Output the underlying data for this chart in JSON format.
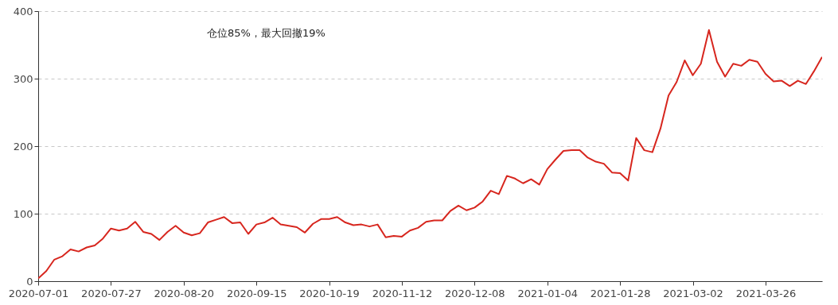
{
  "chart_data": {
    "type": "line",
    "categories": [
      "2020-07-01",
      null,
      null,
      null,
      null,
      null,
      null,
      null,
      null,
      "2020-07-27",
      null,
      null,
      null,
      null,
      null,
      null,
      null,
      null,
      "2020-08-20",
      null,
      null,
      null,
      null,
      null,
      null,
      null,
      null,
      "2020-09-15",
      null,
      null,
      null,
      null,
      null,
      null,
      null,
      null,
      "2020-10-19",
      null,
      null,
      null,
      null,
      null,
      null,
      null,
      null,
      "2020-11-12",
      null,
      null,
      null,
      null,
      null,
      null,
      null,
      null,
      "2020-12-08",
      null,
      null,
      null,
      null,
      null,
      null,
      null,
      null,
      "2021-01-04",
      null,
      null,
      null,
      null,
      null,
      null,
      null,
      null,
      "2021-01-28",
      null,
      null,
      null,
      null,
      null,
      null,
      null,
      null,
      "2021-03-02",
      null,
      null,
      null,
      null,
      null,
      null,
      null,
      null,
      "2021-03-26",
      null,
      null,
      null,
      null,
      null,
      null,
      null
    ],
    "series": [
      {
        "color": "#d7261e",
        "values": [
          4,
          15,
          32,
          37,
          47,
          44,
          50,
          53,
          63,
          78,
          75,
          78,
          88,
          73,
          70,
          61,
          73,
          82,
          72,
          68,
          71,
          87,
          91,
          95,
          86,
          87,
          70,
          84,
          87,
          94,
          84,
          82,
          80,
          72,
          85,
          92,
          92,
          95,
          87,
          83,
          84,
          81,
          84,
          65,
          67,
          66,
          75,
          79,
          88,
          90,
          90,
          104,
          112,
          105,
          109,
          118,
          134,
          129,
          156,
          152,
          145,
          151,
          143,
          166,
          180,
          193,
          194,
          194,
          183,
          177,
          174,
          161,
          160,
          149,
          212,
          194,
          191,
          226,
          275,
          295,
          327,
          305,
          322,
          372,
          325,
          303,
          322,
          319,
          328,
          325,
          307,
          296,
          297,
          289,
          297,
          292,
          311,
          332
        ]
      }
    ],
    "ylim": [
      0,
      400
    ],
    "yticks": [
      0,
      100,
      200,
      300,
      400
    ],
    "grid": "y",
    "annotations": [
      "仓位85%，最大回撤19%"
    ]
  }
}
